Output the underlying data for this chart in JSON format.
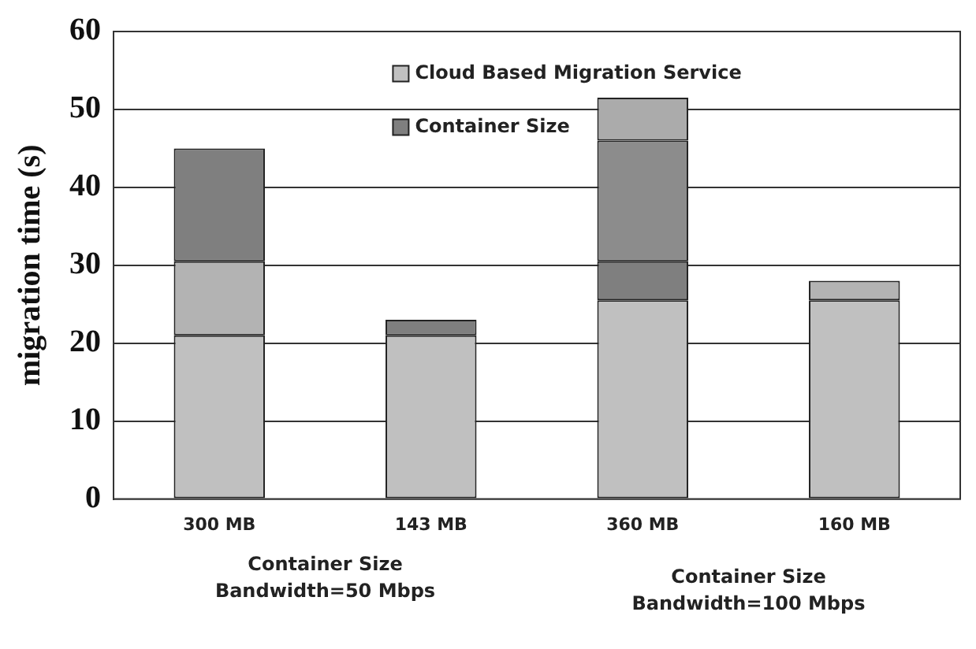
{
  "chart_data": {
    "type": "bar",
    "stacked": true,
    "ylabel": "migration time (s)",
    "categories": [
      "300 MB",
      "143 MB",
      "360 MB",
      "160 MB"
    ],
    "series": [
      {
        "name": "Cloud Based Migration Service",
        "color": "#c0c0c0",
        "values": [
          21,
          21,
          25.5,
          25.5
        ]
      },
      {
        "color": "#b3b3b3",
        "values": [
          9.5,
          null,
          null,
          2.5
        ]
      },
      {
        "name": "Container Size",
        "color": "#7f7f7f",
        "values": [
          14.5,
          2,
          5,
          null
        ]
      },
      {
        "color": "#8c8c8c",
        "values": [
          null,
          null,
          15.5,
          null
        ]
      },
      {
        "color": "#ababab",
        "values": [
          null,
          null,
          5.5,
          null
        ]
      }
    ],
    "ylim": [
      0,
      60
    ],
    "yticks": [
      0,
      10,
      20,
      30,
      40,
      50,
      60
    ],
    "grid": "y",
    "legend": "top",
    "annotations": [
      "Container Size\nBandwidth=50 Mbps",
      "Container Size\nBandwidth=100 Mbps"
    ]
  }
}
